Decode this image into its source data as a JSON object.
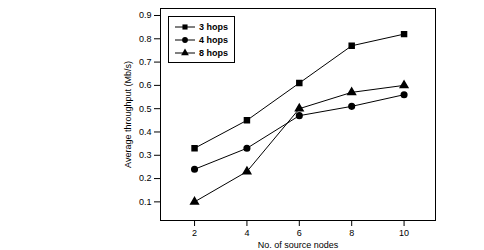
{
  "chart_data": {
    "type": "line",
    "x_label": "No. of source nodes",
    "y_label": "Average throughput (Mb/s)",
    "x": [
      2,
      4,
      6,
      8,
      10
    ],
    "series": [
      {
        "name": "3 hops",
        "color": "#000000",
        "marker": "square",
        "values": [
          0.33,
          0.45,
          0.61,
          0.77,
          0.82
        ]
      },
      {
        "name": "4 hops",
        "color": "#000000",
        "marker": "circle",
        "values": [
          0.24,
          0.33,
          0.47,
          0.51,
          0.56
        ]
      },
      {
        "name": "8 hops",
        "color": "#000000",
        "marker": "triangle",
        "values": [
          0.1,
          0.23,
          0.5,
          0.57,
          0.6
        ]
      }
    ],
    "xlim": [
      0.7,
      11.2
    ],
    "xticks": [
      2,
      4,
      6,
      8,
      10
    ],
    "ylim": [
      0.02,
      0.93
    ],
    "yticks": [
      0.1,
      0.2,
      0.3,
      0.4,
      0.5,
      0.6,
      0.7,
      0.8,
      0.9
    ],
    "grid": false,
    "legend": "upper left"
  }
}
